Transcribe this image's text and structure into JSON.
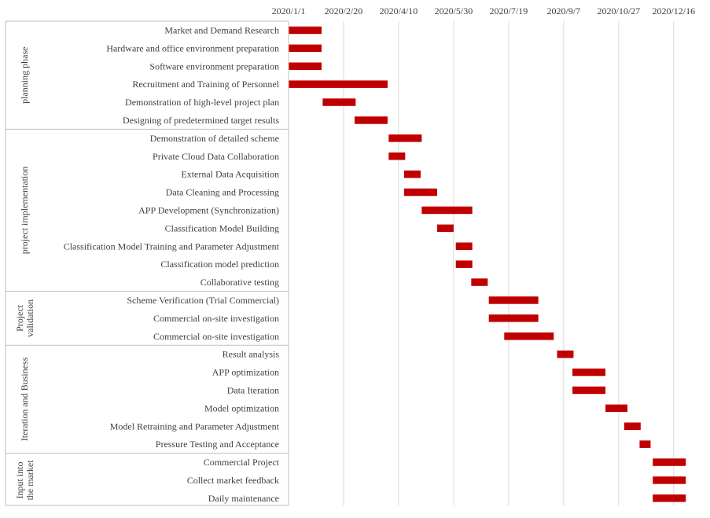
{
  "chart_data": {
    "type": "gantt",
    "title": "",
    "xlabel": "",
    "ylabel": "",
    "grid": true,
    "legend": "none",
    "x_axis_position": "top",
    "bar_color": "#c00000",
    "xlim": [
      "2020-01-01",
      "2021-01-03"
    ],
    "x_ticks": [
      {
        "date": "2020-01-01",
        "label": "2020/1/1"
      },
      {
        "date": "2020-02-20",
        "label": "2020/2/20"
      },
      {
        "date": "2020-04-10",
        "label": "2020/4/10"
      },
      {
        "date": "2020-05-30",
        "label": "2020/5/30"
      },
      {
        "date": "2020-07-19",
        "label": "2020/7/19"
      },
      {
        "date": "2020-09-07",
        "label": "2020/9/7"
      },
      {
        "date": "2020-10-27",
        "label": "2020/10/27"
      },
      {
        "date": "2020-12-16",
        "label": "2020/12/16"
      }
    ],
    "phases": [
      {
        "name": "planning phase",
        "tasks": [
          {
            "task": "Market and Demand Research",
            "start": "2020-01-01",
            "end": "2020-01-31"
          },
          {
            "task": "Hardware and office environment preparation",
            "start": "2020-01-01",
            "end": "2020-01-31"
          },
          {
            "task": "Software environment preparation",
            "start": "2020-01-01",
            "end": "2020-01-31"
          },
          {
            "task": "Recruitment and Training of Personnel",
            "start": "2020-01-01",
            "end": "2020-03-31"
          },
          {
            "task": "Demonstration of high-level project plan",
            "start": "2020-02-01",
            "end": "2020-03-02"
          },
          {
            "task": "Designing of predetermined target results",
            "start": "2020-03-01",
            "end": "2020-03-31"
          }
        ]
      },
      {
        "name": "project implementation",
        "tasks": [
          {
            "task": "Demonstration of detailed scheme",
            "start": "2020-04-01",
            "end": "2020-05-01"
          },
          {
            "task": "Private Cloud Data Collaboration",
            "start": "2020-04-01",
            "end": "2020-04-16"
          },
          {
            "task": "External Data Acquisition",
            "start": "2020-04-15",
            "end": "2020-04-30"
          },
          {
            "task": "Data Cleaning and Processing",
            "start": "2020-04-15",
            "end": "2020-05-15"
          },
          {
            "task": "APP Development (Synchronization)",
            "start": "2020-05-01",
            "end": "2020-06-16"
          },
          {
            "task": "Classification Model Building",
            "start": "2020-05-15",
            "end": "2020-05-30"
          },
          {
            "task": "Classification Model Training and Parameter Adjustment",
            "start": "2020-06-01",
            "end": "2020-06-16"
          },
          {
            "task": "Classification model prediction",
            "start": "2020-06-01",
            "end": "2020-06-16"
          },
          {
            "task": "Collaborative testing",
            "start": "2020-06-15",
            "end": "2020-06-30"
          }
        ]
      },
      {
        "name": "Project validation",
        "tasks": [
          {
            "task": "Scheme Verification (Trial Commercial)",
            "start": "2020-07-01",
            "end": "2020-08-15"
          },
          {
            "task": "Commercial on-site investigation",
            "start": "2020-07-01",
            "end": "2020-08-15"
          },
          {
            "task": "Commercial on-site investigation",
            "start": "2020-07-15",
            "end": "2020-08-29"
          }
        ]
      },
      {
        "name": "Iteration and Business",
        "tasks": [
          {
            "task": "Result analysis",
            "start": "2020-09-01",
            "end": "2020-09-16"
          },
          {
            "task": "APP optimization",
            "start": "2020-09-15",
            "end": "2020-10-15"
          },
          {
            "task": "Data Iteration",
            "start": "2020-09-15",
            "end": "2020-10-15"
          },
          {
            "task": "Model optimization",
            "start": "2020-10-15",
            "end": "2020-11-04"
          },
          {
            "task": "Model Retraining and Parameter Adjustment",
            "start": "2020-11-01",
            "end": "2020-11-16"
          },
          {
            "task": "Pressure Testing and Acceptance",
            "start": "2020-11-15",
            "end": "2020-11-25"
          }
        ]
      },
      {
        "name": "Input into the market",
        "tasks": [
          {
            "task": "Commercial Project",
            "start": "2020-11-27",
            "end": "2020-12-27"
          },
          {
            "task": "Collect market feedback",
            "start": "2020-11-27",
            "end": "2020-12-27"
          },
          {
            "task": "Daily maintenance",
            "start": "2020-11-27",
            "end": "2020-12-27"
          }
        ]
      }
    ]
  }
}
